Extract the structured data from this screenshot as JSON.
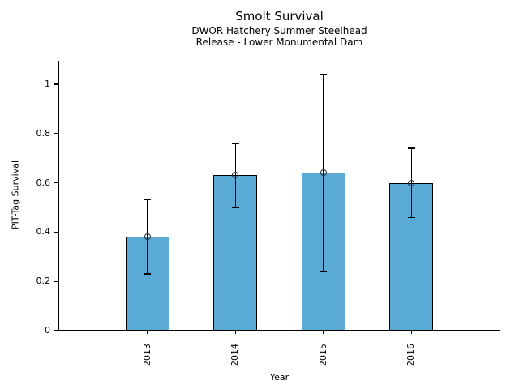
{
  "chart_data": {
    "type": "bar",
    "title": "Smolt Survival",
    "subtitle_lines": [
      "DWOR Hatchery Summer Steelhead",
      "Release - Lower Monumental Dam"
    ],
    "xlabel": "Year",
    "ylabel": "PIT-Tag Survival",
    "categories": [
      "2013",
      "2014",
      "2015",
      "2016"
    ],
    "values": [
      0.38,
      0.63,
      0.64,
      0.6
    ],
    "error_low": [
      0.23,
      0.5,
      0.24,
      0.46
    ],
    "error_high": [
      0.53,
      0.76,
      1.04,
      0.74
    ],
    "ytick_labels": [
      "0",
      "0.2",
      "0.4",
      "0.6",
      "0.8",
      "1"
    ],
    "ytick_values": [
      0,
      0.2,
      0.4,
      0.6,
      0.8,
      1
    ],
    "ylim": [
      0,
      1.095
    ],
    "grid": false,
    "legend_position": "none",
    "marker": "open-circle",
    "colors": {
      "bar_fill": "#59ABD6",
      "bar_edge": "#000000",
      "error_bar": "#000000",
      "marker_edge": "#2b2b2b",
      "text": "#000000"
    }
  }
}
